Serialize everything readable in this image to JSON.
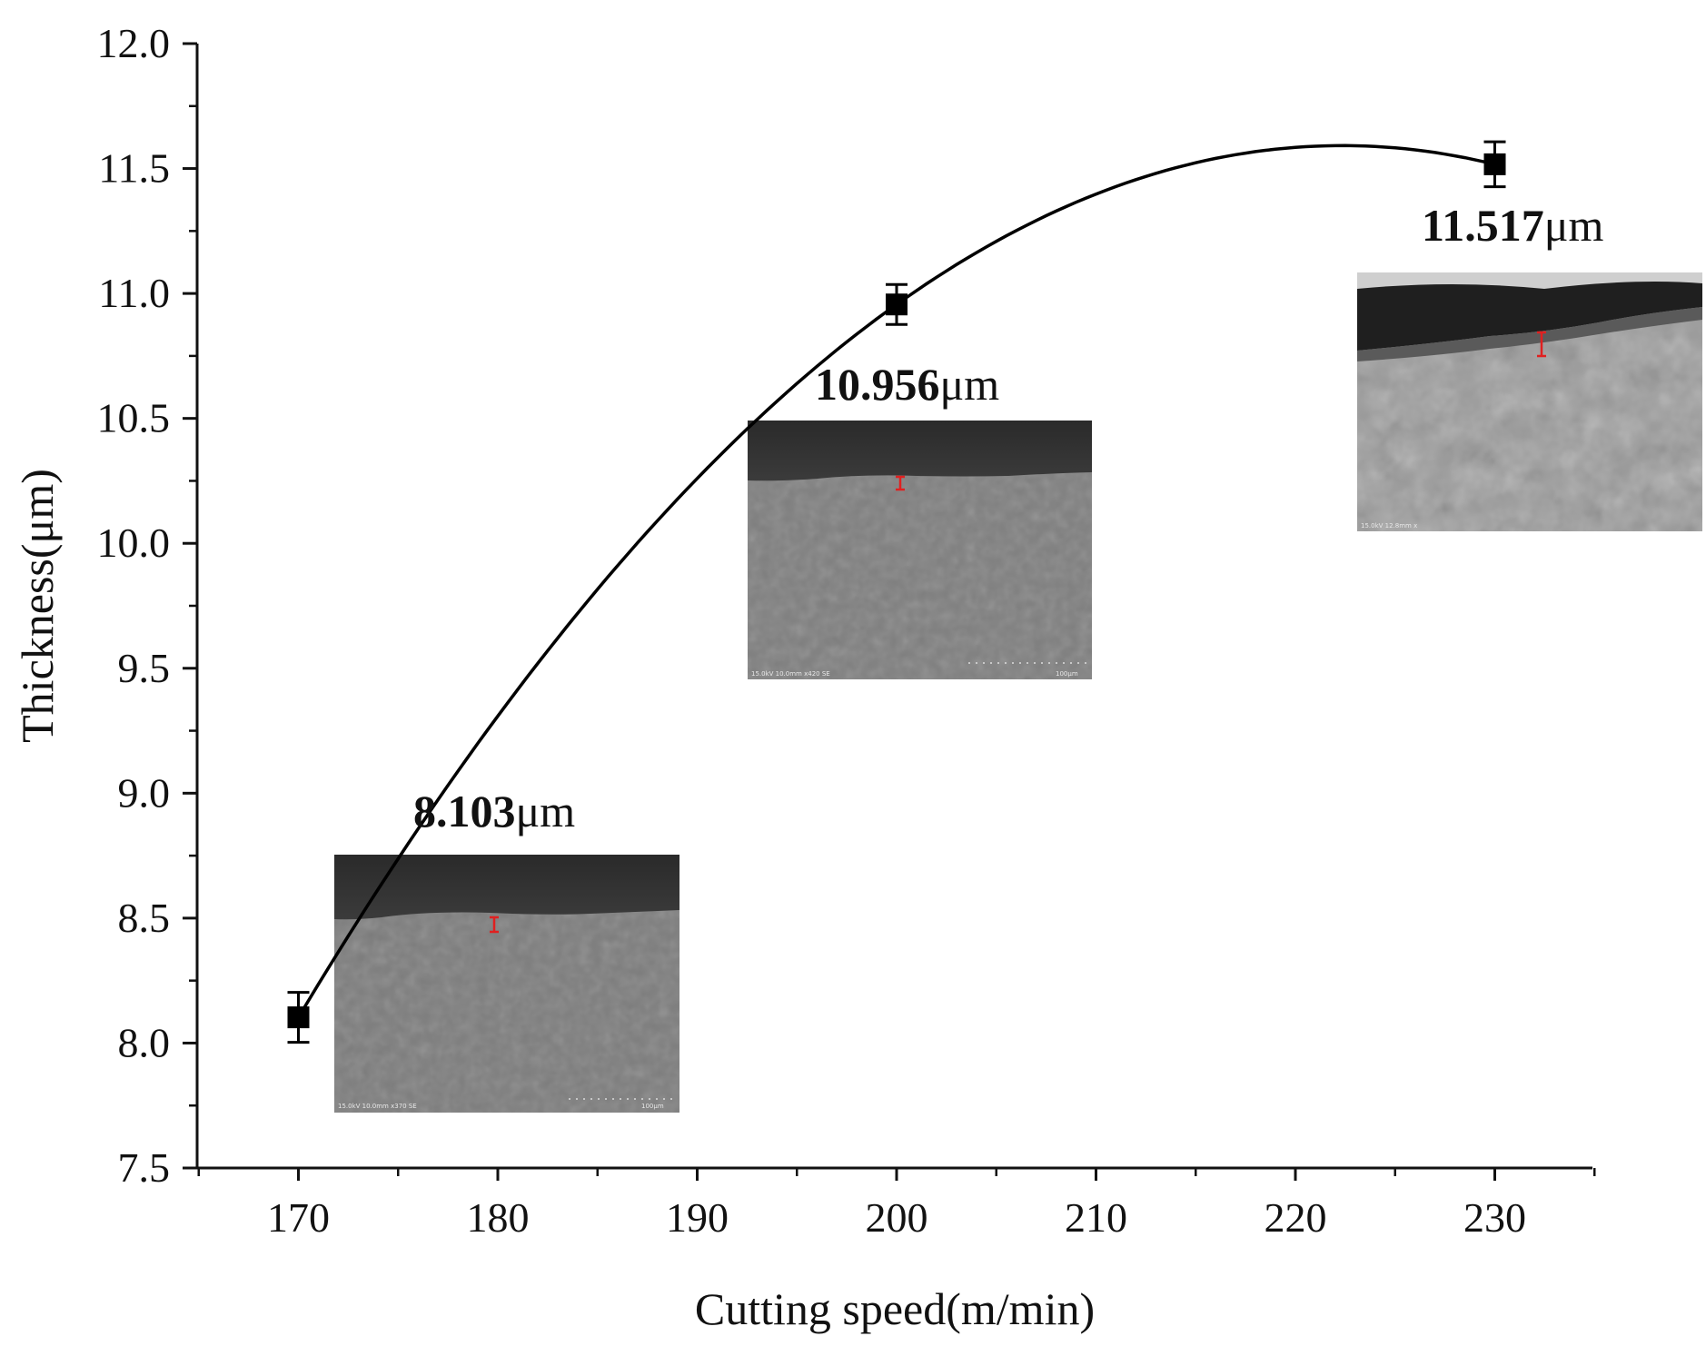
{
  "chart_data": {
    "type": "scatter",
    "title": "",
    "xlabel": "Cutting speed(m/min)",
    "ylabel": "Thickness(μm)",
    "xlim": [
      165,
      235
    ],
    "ylim": [
      7.5,
      12.0
    ],
    "xticks": [
      "170",
      "180",
      "190",
      "200",
      "210",
      "220",
      "230"
    ],
    "yticks": [
      "7.5",
      "8.0",
      "8.5",
      "9.0",
      "9.5",
      "10.0",
      "10.5",
      "11.0",
      "11.5",
      "12.0"
    ],
    "series": [
      {
        "name": "Thickness",
        "x": [
          170,
          200,
          230
        ],
        "y": [
          8.103,
          10.956,
          11.517
        ],
        "error": [
          0.1,
          0.08,
          0.09
        ]
      }
    ],
    "fit": {
      "type": "polynomial-2",
      "label": "fitted curve"
    },
    "annotations": [
      {
        "value": "8.103",
        "unit": "μm"
      },
      {
        "value": "10.956",
        "unit": "μm"
      },
      {
        "value": "11.517",
        "unit": "μm"
      }
    ],
    "insets": [
      {
        "caption": "15.0kV 10.0mm x370 SE",
        "scale": "100μm"
      },
      {
        "caption": "15.0kV 10.0mm x420 SE",
        "scale": "100μm"
      },
      {
        "caption": "15.0kV 12.8mm x",
        "scale": ""
      }
    ]
  }
}
